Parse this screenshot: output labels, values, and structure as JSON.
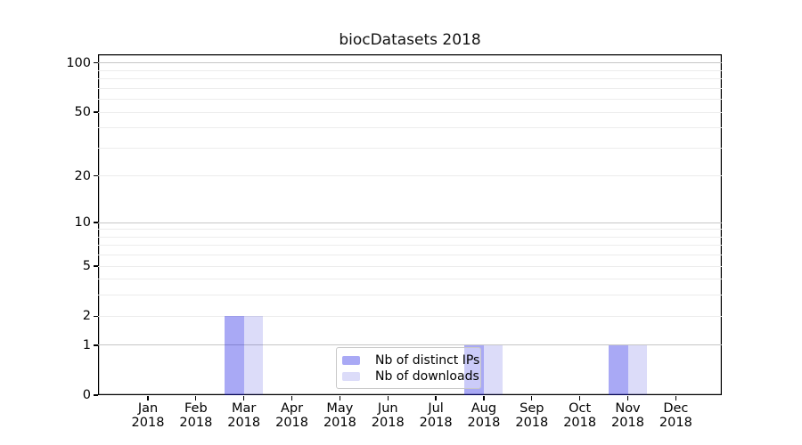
{
  "chart_data": {
    "type": "bar",
    "title": "biocDatasets 2018",
    "year_label": "2018",
    "months": [
      "Jan",
      "Feb",
      "Mar",
      "Apr",
      "May",
      "Jun",
      "Jul",
      "Aug",
      "Sep",
      "Oct",
      "Nov",
      "Dec"
    ],
    "series": [
      {
        "name": "Nb of distinct IPs",
        "color": "rgba(10,10,225,0.35)",
        "color_solid": "#a9a9f5",
        "values": [
          0,
          0,
          2,
          0,
          0,
          0,
          0,
          1,
          0,
          0,
          1,
          0
        ]
      },
      {
        "name": "Nb of downloads",
        "color": "rgba(5,5,212,0.14)",
        "color_solid": "#dcdcf9",
        "values": [
          0,
          0,
          2,
          0,
          0,
          0,
          0,
          1,
          0,
          0,
          1,
          0
        ]
      }
    ],
    "y_axis": {
      "ticks": [
        0,
        1,
        2,
        5,
        10,
        20,
        50,
        100
      ],
      "minor_ticks": [
        3,
        4,
        6,
        7,
        8,
        9,
        30,
        40,
        60,
        70,
        80,
        90
      ],
      "decade_ticks": [
        1,
        10,
        100
      ],
      "scale": "log10(1+y)",
      "max": 113,
      "min": 0
    },
    "x_axis": {
      "tick_count": 12
    },
    "grid": {
      "major_color": "#c6c6c6",
      "minor_color": "#ececec"
    },
    "legend": {
      "position": "lower center"
    }
  }
}
